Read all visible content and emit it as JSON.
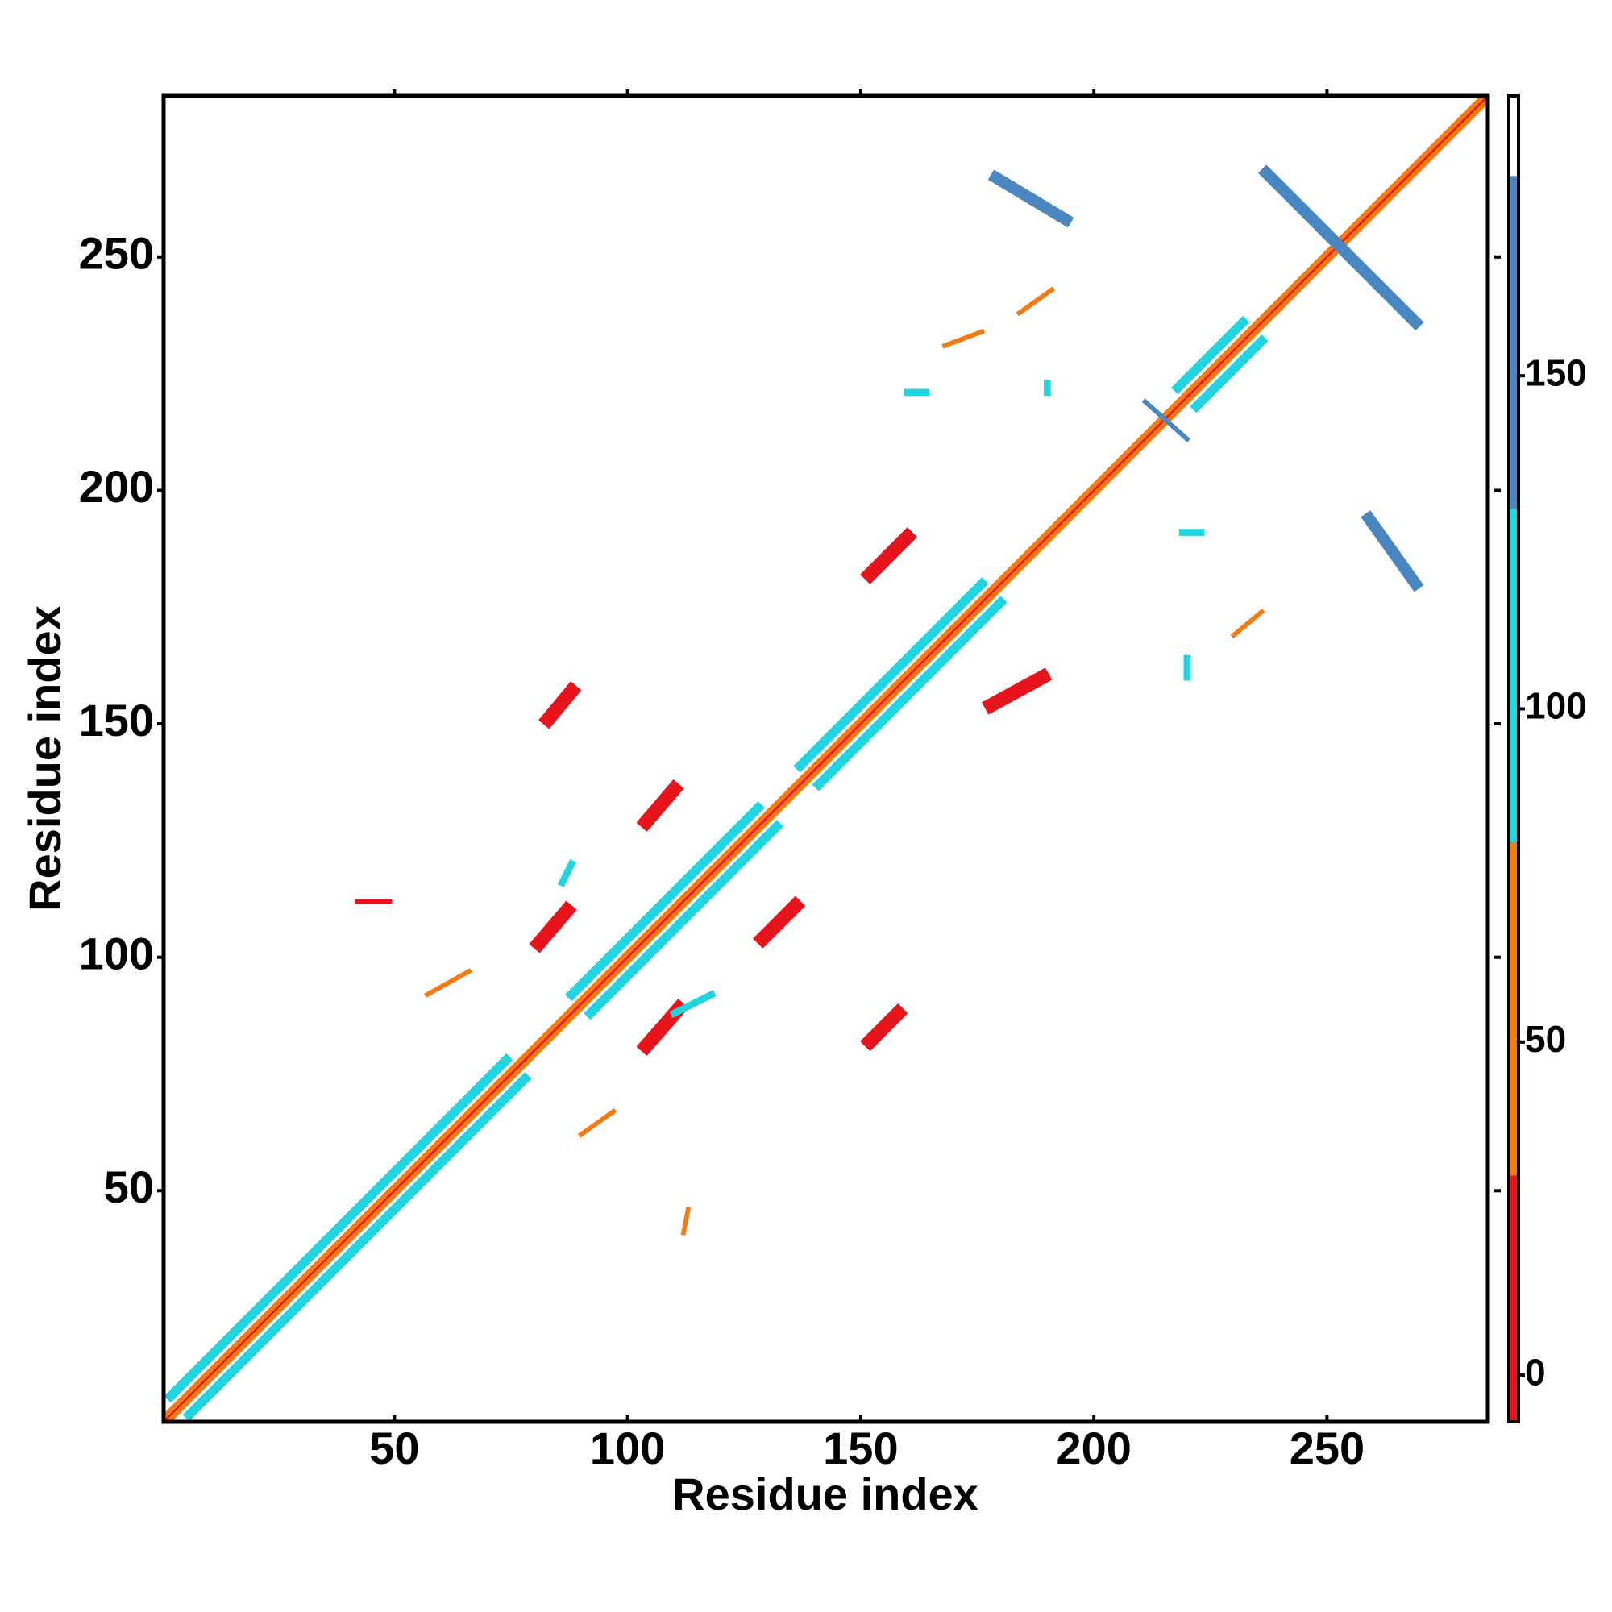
{
  "chart_data": {
    "type": "heatmap",
    "xlabel": "Residue index",
    "ylabel": "Residue index",
    "xlim": [
      0.5,
      284.5
    ],
    "ylim": [
      0.5,
      284.5
    ],
    "xticks": [
      50,
      100,
      150,
      200,
      250
    ],
    "yticks": [
      50,
      100,
      150,
      200,
      250
    ],
    "clim": [
      -7,
      192
    ],
    "cticks": [
      0,
      50,
      100,
      150
    ],
    "cbar_bounds": [
      -7,
      30,
      80,
      130,
      180,
      192
    ],
    "cbar_colors": [
      "#e8141c",
      "#f57a12",
      "#22d3e0",
      "#4a86c0",
      "#ffffff"
    ],
    "features": [
      {
        "x": [
          1,
          284
        ],
        "y": [
          1,
          284
        ],
        "value": 5,
        "width": 1
      },
      {
        "x": [
          2,
          284
        ],
        "y": [
          1,
          283
        ],
        "value": 55,
        "width": 1
      },
      {
        "x": [
          1,
          283
        ],
        "y": [
          2,
          284
        ],
        "value": 55,
        "width": 1
      },
      {
        "x": [
          6,
          78
        ],
        "y": [
          2,
          74
        ],
        "value": 100,
        "width": 2
      },
      {
        "x": [
          2,
          74
        ],
        "y": [
          6,
          78
        ],
        "value": 100,
        "width": 2
      },
      {
        "x": [
          92,
          132
        ],
        "y": [
          88,
          128
        ],
        "value": 100,
        "width": 2
      },
      {
        "x": [
          88,
          128
        ],
        "y": [
          92,
          132
        ],
        "value": 100,
        "width": 2
      },
      {
        "x": [
          141,
          180
        ],
        "y": [
          137,
          176
        ],
        "value": 100,
        "width": 2
      },
      {
        "x": [
          137,
          176
        ],
        "y": [
          141,
          180
        ],
        "value": 100,
        "width": 2
      },
      {
        "x": [
          222,
          236
        ],
        "y": [
          218,
          232
        ],
        "value": 100,
        "width": 2
      },
      {
        "x": [
          218,
          232
        ],
        "y": [
          222,
          236
        ],
        "value": 100,
        "width": 2
      },
      {
        "x": [
          211,
          220
        ],
        "y": [
          219,
          211
        ],
        "value": 160,
        "width": 1
      },
      {
        "x": [
          179,
          194
        ],
        "y": [
          267,
          258
        ],
        "value": 160,
        "width": 2.5
      },
      {
        "x": [
          259,
          269
        ],
        "y": [
          194,
          180
        ],
        "value": 160,
        "width": 2.5
      },
      {
        "x": [
          237,
          269
        ],
        "y": [
          268,
          236
        ],
        "value": 160,
        "width": 2.5
      },
      {
        "x": [
          81,
          87
        ],
        "y": [
          103,
          110
        ],
        "value": 20,
        "width": 3
      },
      {
        "x": [
          104,
          111
        ],
        "y": [
          81,
          89
        ],
        "value": 20,
        "width": 3
      },
      {
        "x": [
          83,
          88
        ],
        "y": [
          151,
          157
        ],
        "value": 25,
        "width": 3
      },
      {
        "x": [
          152,
          158
        ],
        "y": [
          82,
          88
        ],
        "value": 25,
        "width": 3
      },
      {
        "x": [
          178,
          189
        ],
        "y": [
          154,
          160
        ],
        "value": 20,
        "width": 3
      },
      {
        "x": [
          152,
          160
        ],
        "y": [
          182,
          190
        ],
        "value": 20,
        "width": 3
      },
      {
        "x": [
          104,
          110
        ],
        "y": [
          129,
          136
        ],
        "value": 25,
        "width": 3
      },
      {
        "x": [
          129,
          136
        ],
        "y": [
          104,
          111
        ],
        "value": 25,
        "width": 3
      },
      {
        "x": [
          86,
          88
        ],
        "y": [
          116,
          120
        ],
        "value": 100,
        "width": 1.5
      },
      {
        "x": [
          110,
          118
        ],
        "y": [
          88,
          92
        ],
        "value": 100,
        "width": 1.5
      },
      {
        "x": [
          57,
          66
        ],
        "y": [
          92,
          97
        ],
        "value": 55,
        "width": 1
      },
      {
        "x": [
          90,
          97
        ],
        "y": [
          62,
          67
        ],
        "value": 55,
        "width": 1
      },
      {
        "x": [
          42,
          49
        ],
        "y": [
          112,
          112
        ],
        "value": 20,
        "width": 1
      },
      {
        "x": [
          112,
          113
        ],
        "y": [
          41,
          46
        ],
        "value": 55,
        "width": 1
      },
      {
        "x": [
          184,
          191
        ],
        "y": [
          238,
          243
        ],
        "value": 55,
        "width": 1
      },
      {
        "x": [
          160,
          164
        ],
        "y": [
          221,
          221
        ],
        "value": 100,
        "width": 1.5
      },
      {
        "x": [
          220,
          220
        ],
        "y": [
          160,
          164
        ],
        "value": 100,
        "width": 1.5
      },
      {
        "x": [
          190,
          190
        ],
        "y": [
          221,
          223
        ],
        "value": 100,
        "width": 1.5
      },
      {
        "x": [
          219,
          223
        ],
        "y": [
          191,
          191
        ],
        "value": 100,
        "width": 1.5
      },
      {
        "x": [
          168,
          176
        ],
        "y": [
          231,
          234
        ],
        "value": 55,
        "width": 1
      },
      {
        "x": [
          230,
          236
        ],
        "y": [
          169,
          174
        ],
        "value": 55,
        "width": 1
      }
    ]
  }
}
